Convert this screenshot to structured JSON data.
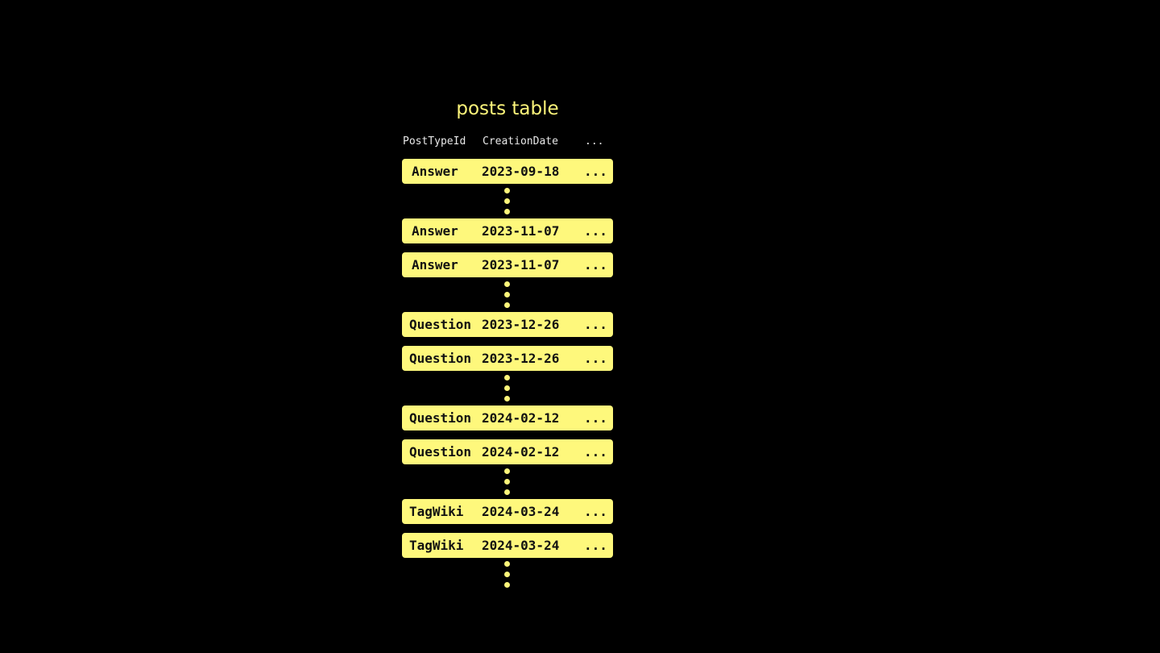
{
  "title": "posts table",
  "headers": [
    "PostTypeId",
    "CreationDate",
    "..."
  ],
  "rows": [
    [
      "Answer",
      "2023-09-18",
      "..."
    ],
    [
      "Answer",
      "2023-11-07",
      "..."
    ],
    [
      "Answer",
      "2023-11-07",
      "..."
    ],
    [
      "Question",
      "2023-12-26",
      "..."
    ],
    [
      "Question",
      "2023-12-26",
      "..."
    ],
    [
      "Question",
      "2024-02-12",
      "..."
    ],
    [
      "Question",
      "2024-02-12",
      "..."
    ],
    [
      "TagWiki",
      "2024-03-24",
      "..."
    ],
    [
      "TagWiki",
      "2024-03-24",
      "..."
    ]
  ],
  "colors": {
    "row": "#fef87c",
    "title": "#fdf57a",
    "background": "#000000"
  }
}
